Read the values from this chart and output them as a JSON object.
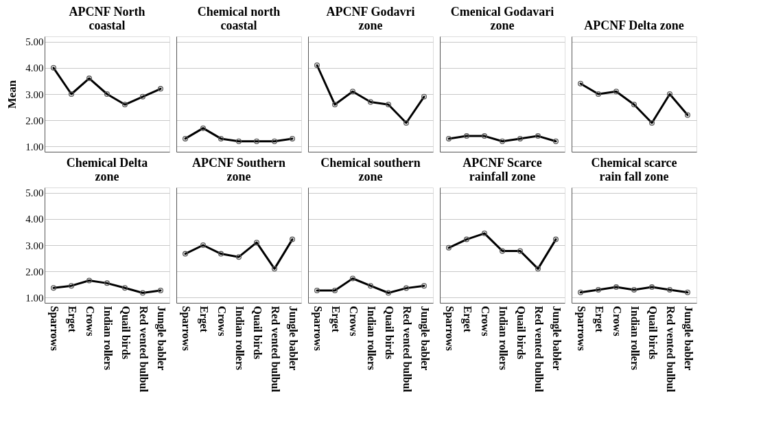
{
  "chart_data": [
    {
      "type": "line",
      "title": "APCNF North coastal",
      "ylabel": "Mean",
      "categories": [
        "Sparrows",
        "Erget",
        "Crows",
        "Indian rollers",
        "Quail birds",
        "Red vented bulbul",
        "Jungle babler"
      ],
      "values": [
        4.0,
        3.0,
        3.6,
        3.0,
        2.6,
        2.9,
        3.2
      ],
      "color": "#000000",
      "marker": "circle",
      "ylim": [
        0.8,
        5.2
      ],
      "yticks": [
        {
          "value": 1,
          "label": "1.00"
        },
        {
          "value": 2,
          "label": "2.00"
        },
        {
          "value": 3,
          "label": "3.00"
        },
        {
          "value": 4,
          "label": "4.00"
        },
        {
          "value": 5,
          "label": "5.00"
        }
      ],
      "grid": "y",
      "tick_labels": "y"
    },
    {
      "type": "line",
      "title": "Chemical north coastal",
      "categories": [
        "Sparrows",
        "Erget",
        "Crows",
        "Indian rollers",
        "Quail birds",
        "Red vented bulbul",
        "Jungle babler"
      ],
      "values": [
        1.3,
        1.7,
        1.3,
        1.2,
        1.2,
        1.2,
        1.3
      ],
      "color": "#000000",
      "marker": "circle",
      "ylim": [
        0.8,
        5.2
      ],
      "yticks": [
        {
          "value": 1,
          "label": "1.00"
        },
        {
          "value": 2,
          "label": "2.00"
        },
        {
          "value": 3,
          "label": "3.00"
        },
        {
          "value": 4,
          "label": "4.00"
        },
        {
          "value": 5,
          "label": "5.00"
        }
      ],
      "grid": "y",
      "tick_labels": false
    },
    {
      "type": "line",
      "title": "APCNF Godavri zone",
      "categories": [
        "Sparrows",
        "Erget",
        "Crows",
        "Indian rollers",
        "Quail birds",
        "Red vented bulbul",
        "Jungle babler"
      ],
      "values": [
        4.1,
        2.6,
        3.1,
        2.7,
        2.6,
        1.9,
        2.9
      ],
      "color": "#000000",
      "marker": "circle",
      "ylim": [
        0.8,
        5.2
      ],
      "yticks": [
        {
          "value": 1,
          "label": "1.00"
        },
        {
          "value": 2,
          "label": "2.00"
        },
        {
          "value": 3,
          "label": "3.00"
        },
        {
          "value": 4,
          "label": "4.00"
        },
        {
          "value": 5,
          "label": "5.00"
        }
      ],
      "grid": "y",
      "tick_labels": false
    },
    {
      "type": "line",
      "title": "Cmenical Godavari zone",
      "categories": [
        "Sparrows",
        "Erget",
        "Crows",
        "Indian rollers",
        "Quail birds",
        "Red vented bulbul",
        "Jungle babler"
      ],
      "values": [
        1.3,
        1.4,
        1.4,
        1.2,
        1.3,
        1.4,
        1.2
      ],
      "color": "#000000",
      "marker": "circle",
      "ylim": [
        0.8,
        5.2
      ],
      "yticks": [
        {
          "value": 1,
          "label": "1.00"
        },
        {
          "value": 2,
          "label": "2.00"
        },
        {
          "value": 3,
          "label": "3.00"
        },
        {
          "value": 4,
          "label": "4.00"
        },
        {
          "value": 5,
          "label": "5.00"
        }
      ],
      "grid": "y",
      "tick_labels": false
    },
    {
      "type": "line",
      "title": "APCNF Delta zone",
      "categories": [
        "Sparrows",
        "Erget",
        "Crows",
        "Indian rollers",
        "Quail birds",
        "Red vented bulbul",
        "Jungle babler"
      ],
      "values": [
        3.4,
        3.0,
        3.1,
        2.6,
        1.9,
        3.0,
        2.2
      ],
      "color": "#000000",
      "marker": "circle",
      "ylim": [
        0.8,
        5.2
      ],
      "yticks": [
        {
          "value": 1,
          "label": "1.00"
        },
        {
          "value": 2,
          "label": "2.00"
        },
        {
          "value": 3,
          "label": "3.00"
        },
        {
          "value": 4,
          "label": "4.00"
        },
        {
          "value": 5,
          "label": "5.00"
        }
      ],
      "grid": "y",
      "tick_labels": false
    },
    {
      "type": "line",
      "title": "Chemical Delta zone",
      "categories": [
        "Sparrows",
        "Erget",
        "Crows",
        "Indian rollers",
        "Quail birds",
        "Red vented bulbul",
        "Jungle babler"
      ],
      "values": [
        1.37,
        1.45,
        1.65,
        1.55,
        1.37,
        1.18,
        1.27
      ],
      "color": "#000000",
      "marker": "circle",
      "ylim": [
        0.8,
        5.2
      ],
      "yticks": [
        {
          "value": 1,
          "label": "1.00"
        },
        {
          "value": 2,
          "label": "2.00"
        },
        {
          "value": 3,
          "label": "3.00"
        },
        {
          "value": 4,
          "label": "4.00"
        },
        {
          "value": 5,
          "label": "5.00"
        }
      ],
      "grid": "y"
    },
    {
      "type": "line",
      "title": "APCNF Southern zone",
      "categories": [
        "Sparrows",
        "Erget",
        "Crows",
        "Indian rollers",
        "Quail birds",
        "Red vented bulbul",
        "Jungle babler"
      ],
      "values": [
        2.67,
        3.0,
        2.67,
        2.55,
        3.1,
        2.1,
        3.22
      ],
      "color": "#000000",
      "marker": "circle",
      "ylim": [
        0.8,
        5.2
      ],
      "yticks": [
        {
          "value": 1,
          "label": "1.00"
        },
        {
          "value": 2,
          "label": "2.00"
        },
        {
          "value": 3,
          "label": "3.00"
        },
        {
          "value": 4,
          "label": "4.00"
        },
        {
          "value": 5,
          "label": "5.00"
        }
      ],
      "grid": "y",
      "tick_labels": "x"
    },
    {
      "type": "line",
      "title": "Chemical southern zone",
      "categories": [
        "Sparrows",
        "Erget",
        "Crows",
        "Indian rollers",
        "Quail birds",
        "Red vented bulbul",
        "Jungle babler"
      ],
      "values": [
        1.27,
        1.27,
        1.73,
        1.45,
        1.18,
        1.36,
        1.45
      ],
      "color": "#000000",
      "marker": "circle",
      "ylim": [
        0.8,
        5.2
      ],
      "yticks": [
        {
          "value": 1,
          "label": "1.00"
        },
        {
          "value": 2,
          "label": "2.00"
        },
        {
          "value": 3,
          "label": "3.00"
        },
        {
          "value": 4,
          "label": "4.00"
        },
        {
          "value": 5,
          "label": "5.00"
        }
      ],
      "grid": "y",
      "tick_labels": "x"
    },
    {
      "type": "line",
      "title": "APCNF Scarce rainfall zone",
      "categories": [
        "Sparrows",
        "Erget",
        "Crows",
        "Indian rollers",
        "Quail birds",
        "Red vented bulbul",
        "Jungle babler"
      ],
      "values": [
        2.9,
        3.22,
        3.45,
        2.78,
        2.78,
        2.1,
        3.22
      ],
      "color": "#000000",
      "marker": "circle",
      "ylim": [
        0.8,
        5.2
      ],
      "yticks": [
        {
          "value": 1,
          "label": "1.00"
        },
        {
          "value": 2,
          "label": "2.00"
        },
        {
          "value": 3,
          "label": "3.00"
        },
        {
          "value": 4,
          "label": "4.00"
        },
        {
          "value": 5,
          "label": "5.00"
        }
      ],
      "grid": "y",
      "tick_labels": "x"
    },
    {
      "type": "line",
      "title": "Chemical scarce rain fall zone",
      "categories": [
        "Sparrows",
        "Erget",
        "Crows",
        "Indian rollers",
        "Quail birds",
        "Red vented bulbul",
        "Jungle babler"
      ],
      "values": [
        1.2,
        1.3,
        1.4,
        1.3,
        1.4,
        1.3,
        1.2
      ],
      "color": "#000000",
      "marker": "circle",
      "ylim": [
        0.8,
        5.2
      ],
      "yticks": [
        {
          "value": 1,
          "label": "1.00"
        },
        {
          "value": 2,
          "label": "2.00"
        },
        {
          "value": 3,
          "label": "3.00"
        },
        {
          "value": 4,
          "label": "4.00"
        },
        {
          "value": 5,
          "label": "5.00"
        }
      ],
      "grid": "y",
      "tick_labels": "x"
    }
  ]
}
